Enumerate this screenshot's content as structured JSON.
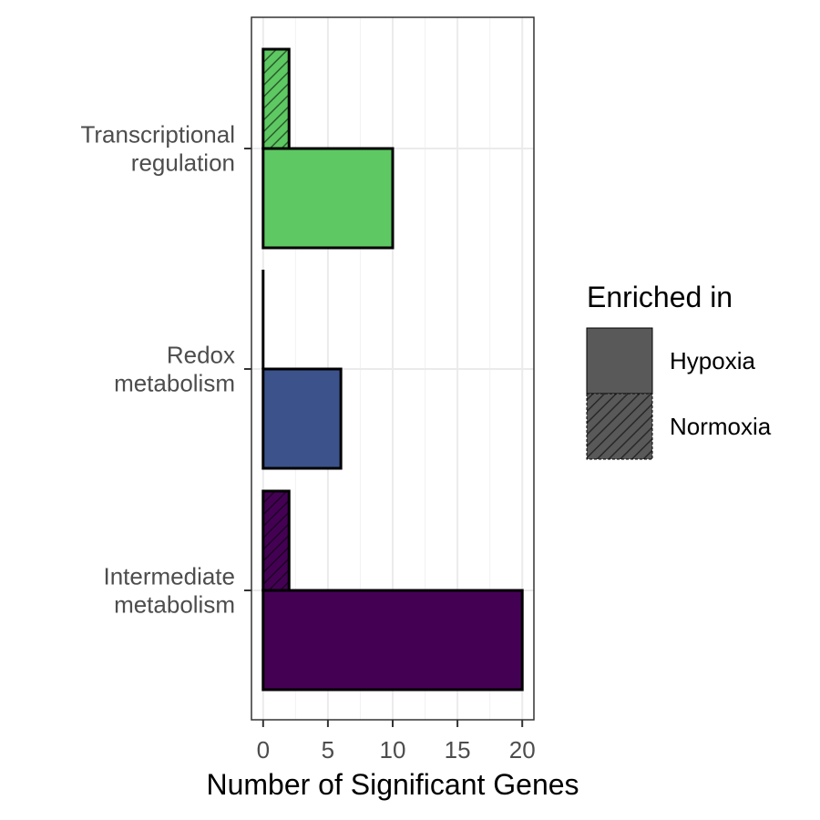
{
  "chart_data": {
    "type": "bar",
    "orientation": "horizontal",
    "xlabel": "Number of Significant Genes",
    "ylabel": "",
    "xlim": [
      -0.9,
      20.9
    ],
    "x_ticks": [
      "0",
      "5",
      "10",
      "15",
      "20"
    ],
    "grid": true,
    "categories": [
      {
        "lines": [
          "Transcriptional",
          "regulation"
        ],
        "color": "#5ec962"
      },
      {
        "lines": [
          "Redox",
          "metabolism"
        ],
        "color": "#3b528b"
      },
      {
        "lines": [
          "Intermediate",
          "metabolism"
        ],
        "color": "#440154"
      }
    ],
    "series": [
      {
        "name": "Hypoxia",
        "pattern": "solid",
        "values": [
          10,
          6,
          20
        ]
      },
      {
        "name": "Normoxia",
        "pattern": "hatched",
        "values": [
          2,
          0,
          2
        ]
      }
    ],
    "legend": {
      "title": "Enriched in",
      "position": "right",
      "items": [
        "Hypoxia",
        "Normoxia"
      ],
      "swatch_color": "#595959"
    }
  }
}
